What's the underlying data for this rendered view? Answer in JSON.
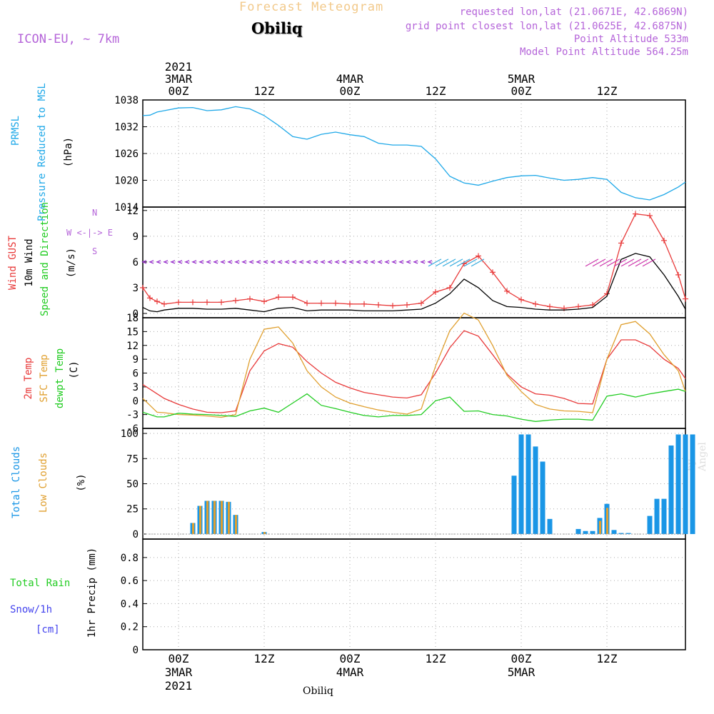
{
  "header": {
    "title": "Forecast Meteogram",
    "location": "Obiliq",
    "model": "ICON-EU, ~ 7km",
    "info": [
      "requested lon,lat (21.0671E, 42.6869N)",
      "grid point closest lon,lat (21.0625E, 42.6875N)",
      "Point Altitude 533m",
      "Model Point Altitude 564.25m"
    ]
  },
  "time_axis": {
    "top_labels": [
      {
        "t": 0,
        "lines": [
          "2021",
          "3MAR",
          "00Z"
        ]
      },
      {
        "t": 12,
        "lines": [
          "12Z"
        ]
      },
      {
        "t": 24,
        "lines": [
          "4MAR",
          "00Z"
        ]
      },
      {
        "t": 36,
        "lines": [
          "12Z"
        ]
      },
      {
        "t": 48,
        "lines": [
          "5MAR",
          "00Z"
        ]
      },
      {
        "t": 60,
        "lines": [
          "12Z"
        ]
      }
    ],
    "bottom_labels": [
      {
        "t": 0,
        "lines": [
          "00Z",
          "3MAR",
          "2021"
        ]
      },
      {
        "t": 12,
        "lines": [
          "12Z"
        ]
      },
      {
        "t": 24,
        "lines": [
          "00Z",
          "4MAR"
        ]
      },
      {
        "t": 36,
        "lines": [
          "12Z"
        ]
      },
      {
        "t": 48,
        "lines": [
          "00Z",
          "5MAR"
        ]
      },
      {
        "t": 60,
        "lines": [
          "12Z"
        ]
      }
    ],
    "t_range": [
      -5,
      71
    ]
  },
  "panel_labels": {
    "pressure": {
      "lines": [
        "PRMSL",
        "Pressure Reduced to MSL"
      ],
      "unit": "(hPa)"
    },
    "wind": {
      "gust": "Wind GUST",
      "wind10": "10m Wind",
      "dir": "Speed and Direction",
      "unit": "(m/s)",
      "compass": "W <-|-> E",
      "compass_n": "N",
      "compass_s": "S"
    },
    "temp": {
      "t2m": "2m Temp",
      "sfc": "SFC Temp",
      "dew": "dewpt Temp",
      "unit": "(C)"
    },
    "clouds": {
      "total": "Total Clouds",
      "low": "Low Clouds",
      "unit": "(%)"
    },
    "precip": {
      "rain": "Total  Rain",
      "snow": "Snow/1h",
      "snow_unit": "[cm]",
      "axis": "1hr Precip (mm)"
    }
  },
  "footer": {
    "location": "Obiliq",
    "watermark": "by Angel"
  },
  "colors": {
    "pressure": "#1ea8e8",
    "gust": "#e83a3a",
    "wind": "#000000",
    "t2m": "#e83a3a",
    "sfc": "#e0a030",
    "dew": "#22cc22",
    "total_clouds": "#1a96e6",
    "low_clouds": "#e0a030",
    "purple": "#b565d9",
    "rain": "#22cc22",
    "snow": "#4444ee"
  },
  "chart_data": [
    {
      "type": "line",
      "title": "PRMSL Pressure Reduced to MSL",
      "ylabel": "(hPa)",
      "ylim": [
        1014,
        1038
      ],
      "yticks": [
        1014,
        1020,
        1026,
        1032,
        1038
      ],
      "x": [
        -5,
        -4,
        -3,
        -2,
        0,
        2,
        4,
        6,
        8,
        10,
        12,
        14,
        16,
        18,
        20,
        22,
        24,
        26,
        28,
        30,
        32,
        34,
        36,
        38,
        40,
        42,
        44,
        46,
        48,
        50,
        52,
        54,
        56,
        58,
        60,
        62,
        64,
        66,
        68,
        70,
        71
      ],
      "series": [
        {
          "name": "PRMSL",
          "values": [
            1034.5,
            1034.6,
            1035.3,
            1035.6,
            1036.2,
            1036.3,
            1035.6,
            1035.8,
            1036.5,
            1036.0,
            1034.5,
            1032.3,
            1029.8,
            1029.2,
            1030.3,
            1030.8,
            1030.2,
            1029.8,
            1028.3,
            1027.9,
            1027.9,
            1027.6,
            1024.8,
            1020.9,
            1019.4,
            1018.9,
            1019.8,
            1020.6,
            1021.0,
            1021.1,
            1020.5,
            1020.0,
            1020.2,
            1020.6,
            1020.2,
            1017.3,
            1016.1,
            1015.6,
            1016.8,
            1018.5,
            1019.6
          ]
        }
      ]
    },
    {
      "type": "line",
      "title": "Wind GUST / 10m Wind",
      "ylabel": "(m/s)",
      "ylim": [
        -0.5,
        12.4
      ],
      "yticks": [
        0,
        3,
        6,
        9,
        12
      ],
      "x": [
        -5,
        -4,
        -3,
        -2,
        0,
        2,
        4,
        6,
        8,
        10,
        12,
        14,
        16,
        18,
        20,
        22,
        24,
        26,
        28,
        30,
        32,
        34,
        36,
        38,
        40,
        42,
        44,
        46,
        48,
        50,
        52,
        54,
        56,
        58,
        60,
        62,
        64,
        66,
        68,
        70,
        71
      ],
      "series": [
        {
          "name": "Wind GUST",
          "values": [
            3.0,
            1.8,
            1.4,
            1.1,
            1.3,
            1.3,
            1.3,
            1.3,
            1.5,
            1.7,
            1.4,
            1.9,
            1.9,
            1.2,
            1.2,
            1.2,
            1.1,
            1.1,
            1.0,
            0.9,
            1.0,
            1.2,
            2.5,
            3.0,
            5.8,
            6.7,
            4.8,
            2.6,
            1.6,
            1.1,
            0.8,
            0.6,
            0.8,
            1.0,
            2.3,
            8.2,
            11.6,
            11.4,
            8.5,
            4.5,
            1.7
          ]
        },
        {
          "name": "10m Wind",
          "values": [
            0.7,
            0.3,
            0.2,
            0.4,
            0.6,
            0.6,
            0.5,
            0.5,
            0.6,
            0.4,
            0.2,
            0.6,
            0.7,
            0.3,
            0.4,
            0.4,
            0.4,
            0.3,
            0.3,
            0.3,
            0.4,
            0.5,
            1.2,
            2.3,
            4.0,
            3.0,
            1.5,
            0.8,
            0.7,
            0.5,
            0.4,
            0.4,
            0.5,
            0.7,
            2.0,
            6.3,
            7.0,
            6.6,
            4.5,
            2.0,
            0.5
          ]
        }
      ],
      "direction_arrows": [
        {
          "from": -5,
          "to": 36,
          "color": "#9933cc",
          "dir": "west"
        },
        {
          "from": 36,
          "to": 43,
          "color": "#33aadd",
          "dir": "northeast"
        },
        {
          "from": 58,
          "to": 67,
          "color": "#cc33aa",
          "dir": "northeast"
        }
      ]
    },
    {
      "type": "line",
      "title": "2m Temp / SFC Temp / dewpt Temp",
      "ylabel": "(C)",
      "ylim": [
        -6,
        18
      ],
      "yticks": [
        -6,
        -3,
        0,
        3,
        6,
        9,
        12,
        15,
        18
      ],
      "x": [
        -5,
        -4,
        -3,
        -2,
        0,
        2,
        4,
        6,
        8,
        10,
        12,
        14,
        16,
        18,
        20,
        22,
        24,
        26,
        28,
        30,
        32,
        34,
        36,
        38,
        40,
        42,
        44,
        46,
        48,
        50,
        52,
        54,
        56,
        58,
        60,
        62,
        64,
        66,
        68,
        70,
        71
      ],
      "series": [
        {
          "name": "2m Temp",
          "values": [
            3.5,
            2.5,
            1.5,
            0.5,
            -0.8,
            -1.8,
            -2.5,
            -2.6,
            -2.2,
            6.5,
            10.8,
            12.4,
            11.6,
            8.5,
            6.0,
            4.0,
            2.8,
            1.8,
            1.3,
            0.8,
            0.6,
            1.3,
            6.0,
            11.5,
            15.2,
            14.0,
            10.0,
            5.8,
            3.0,
            1.5,
            1.2,
            0.5,
            -0.6,
            -0.7,
            9.0,
            13.2,
            13.2,
            11.8,
            9.0,
            7.0,
            4.8
          ]
        },
        {
          "name": "SFC Temp",
          "values": [
            0.5,
            -1.0,
            -2.5,
            -2.6,
            -3.0,
            -3.1,
            -3.3,
            -3.6,
            -3.0,
            9.0,
            15.5,
            16.0,
            12.5,
            6.5,
            3.0,
            0.8,
            -0.5,
            -1.3,
            -2.0,
            -2.5,
            -2.9,
            -1.8,
            7.5,
            15.2,
            19.0,
            17.5,
            12.0,
            5.5,
            2.0,
            -0.8,
            -1.8,
            -2.2,
            -2.3,
            -2.6,
            9.0,
            16.5,
            17.2,
            14.5,
            10.0,
            6.5,
            2.0
          ]
        },
        {
          "name": "dewpt Temp",
          "values": [
            -2.5,
            -3.0,
            -3.5,
            -3.5,
            -2.7,
            -2.9,
            -3.0,
            -3.2,
            -3.4,
            -2.2,
            -1.6,
            -2.5,
            -0.5,
            1.5,
            -1.0,
            -1.7,
            -2.5,
            -3.2,
            -3.5,
            -3.2,
            -3.2,
            -3.0,
            0.0,
            0.8,
            -2.3,
            -2.2,
            -3.0,
            -3.3,
            -4.0,
            -4.5,
            -4.2,
            -4.0,
            -4.0,
            -4.2,
            1.0,
            1.5,
            0.8,
            1.5,
            2.0,
            2.5,
            2.0
          ]
        }
      ]
    },
    {
      "type": "bar",
      "title": "Total Clouds / Low Clouds",
      "ylabel": "(%)",
      "ylim": [
        -5,
        105
      ],
      "yticks": [
        0,
        25,
        50,
        75,
        100
      ],
      "x": [
        2,
        3,
        4,
        5,
        6,
        7,
        8,
        12,
        47,
        48,
        49,
        50,
        51,
        52,
        53,
        56,
        57,
        58,
        59,
        60,
        61,
        62,
        63,
        64,
        66,
        67,
        68,
        69,
        70,
        71,
        72
      ],
      "series": [
        {
          "name": "Total Clouds",
          "values": [
            11,
            28,
            33,
            33,
            33,
            32,
            19,
            2,
            58,
            99,
            99,
            87,
            72,
            15,
            0,
            5,
            3,
            3,
            16,
            30,
            4,
            1,
            1,
            0,
            18,
            35,
            35,
            88,
            99,
            99,
            99
          ]
        },
        {
          "name": "Low Clouds",
          "values": [
            11,
            28,
            33,
            33,
            33,
            32,
            19,
            2,
            0,
            0,
            0,
            0,
            0,
            0,
            0,
            0,
            0,
            0,
            13,
            26,
            0,
            0,
            0,
            0,
            0,
            0,
            0,
            0,
            0,
            0,
            0
          ]
        }
      ]
    },
    {
      "type": "line",
      "title": "1hr Precip",
      "ylabel": "1hr Precip (mm)",
      "ylim": [
        0,
        0.96
      ],
      "yticks": [
        0,
        0.2,
        0.4,
        0.6,
        0.8
      ],
      "x": [],
      "series": [
        {
          "name": "Total Rain",
          "values": []
        },
        {
          "name": "Snow/1h",
          "values": []
        }
      ]
    }
  ]
}
